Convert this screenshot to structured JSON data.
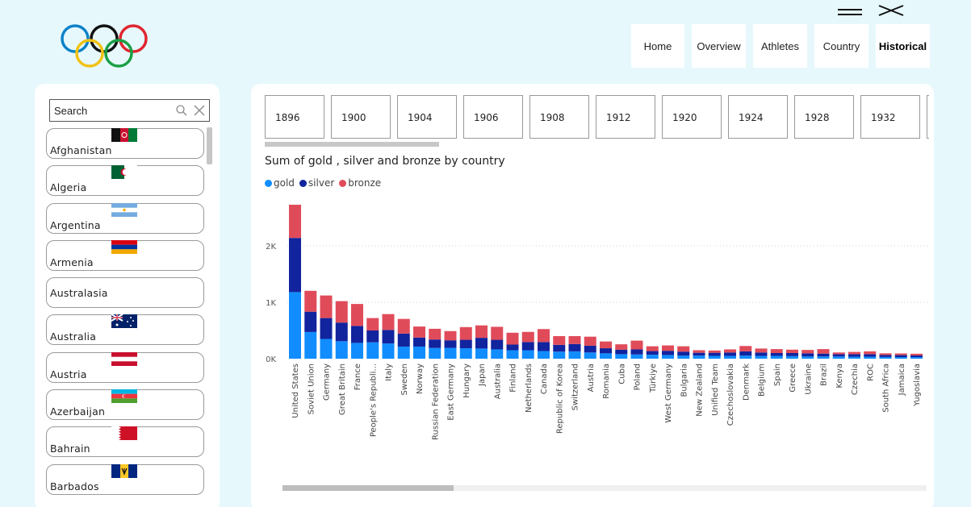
{
  "header": {
    "logo_icon": "olympic-rings-icon",
    "menu_icon": "hamburger-icon",
    "close_icon": "close-x-icon",
    "nav": [
      {
        "label": "Home",
        "active": false
      },
      {
        "label": "Overview",
        "active": false
      },
      {
        "label": "Athletes",
        "active": false
      },
      {
        "label": "Country",
        "active": false
      },
      {
        "label": "Historical",
        "active": true
      }
    ]
  },
  "sidebar": {
    "search": {
      "placeholder": "Search",
      "search_icon": "search-icon",
      "clear_icon": "clear-icon"
    },
    "countries": [
      {
        "name": "Afghanistan",
        "flag": "afghanistan"
      },
      {
        "name": "Algeria",
        "flag": "algeria"
      },
      {
        "name": "Argentina",
        "flag": "argentina"
      },
      {
        "name": "Armenia",
        "flag": "armenia"
      },
      {
        "name": "Australasia",
        "flag": ""
      },
      {
        "name": "Australia",
        "flag": "australia"
      },
      {
        "name": "Austria",
        "flag": "austria"
      },
      {
        "name": "Azerbaijan",
        "flag": "azerbaijan"
      },
      {
        "name": "Bahrain",
        "flag": "bahrain"
      },
      {
        "name": "Barbados",
        "flag": "barbados"
      }
    ]
  },
  "years": [
    "1896",
    "1900",
    "1904",
    "1906",
    "1908",
    "1912",
    "1920",
    "1924",
    "1928",
    "1932"
  ],
  "colors": {
    "gold": "#118dff",
    "silver": "#12239e",
    "bronze": "#e04b5a"
  },
  "chart_data": {
    "type": "bar",
    "stacked": true,
    "title": "Sum of gold , silver and bronze by country",
    "xlabel": "",
    "ylabel": "",
    "ylim": [
      0,
      3000
    ],
    "yticks": [
      "0K",
      "1K",
      "2K",
      "3K"
    ],
    "grid": true,
    "legend_position": "top-left",
    "categories": [
      "United States",
      "Soviet Union",
      "Germany",
      "Great Britain",
      "France",
      "People's Republi...",
      "Italy",
      "Sweden",
      "Norway",
      "Russian Federation",
      "East Germany",
      "Hungary",
      "Japan",
      "Australia",
      "Finland",
      "Netherlands",
      "Canada",
      "Republic of Korea",
      "Switzerland",
      "Austria",
      "Romania",
      "Cuba",
      "Poland",
      "Türkiye",
      "West Germany",
      "Bulgaria",
      "New Zealand",
      "Unified Team",
      "Czechoslovakia",
      "Denmark",
      "Belgium",
      "Spain",
      "Greece",
      "Ukraine",
      "Brazil",
      "Kenya",
      "Czechia",
      "ROC",
      "South Africa",
      "Jamaica",
      "Yugoslavia"
    ],
    "series": [
      {
        "name": "gold",
        "values": [
          1180,
          473,
          350,
          310,
          280,
          290,
          270,
          215,
          215,
          190,
          193,
          185,
          180,
          165,
          150,
          150,
          135,
          125,
          130,
          110,
          95,
          80,
          75,
          70,
          65,
          55,
          55,
          50,
          50,
          55,
          50,
          50,
          45,
          40,
          40,
          40,
          35,
          35,
          30,
          28,
          28
        ]
      },
      {
        "name": "silver",
        "values": [
          960,
          360,
          370,
          330,
          300,
          210,
          240,
          230,
          160,
          150,
          133,
          150,
          190,
          170,
          100,
          145,
          160,
          120,
          130,
          120,
          90,
          80,
          90,
          65,
          75,
          70,
          50,
          55,
          60,
          75,
          60,
          50,
          55,
          55,
          50,
          40,
          45,
          45,
          35,
          35,
          30
        ]
      },
      {
        "name": "bronze",
        "values": [
          850,
          370,
          400,
          380,
          390,
          220,
          280,
          260,
          195,
          190,
          163,
          225,
          220,
          230,
          210,
          180,
          230,
          155,
          140,
          160,
          120,
          95,
          155,
          85,
          95,
          95,
          45,
          40,
          55,
          95,
          70,
          70,
          60,
          60,
          80,
          30,
          40,
          50,
          30,
          30,
          30
        ]
      }
    ]
  }
}
